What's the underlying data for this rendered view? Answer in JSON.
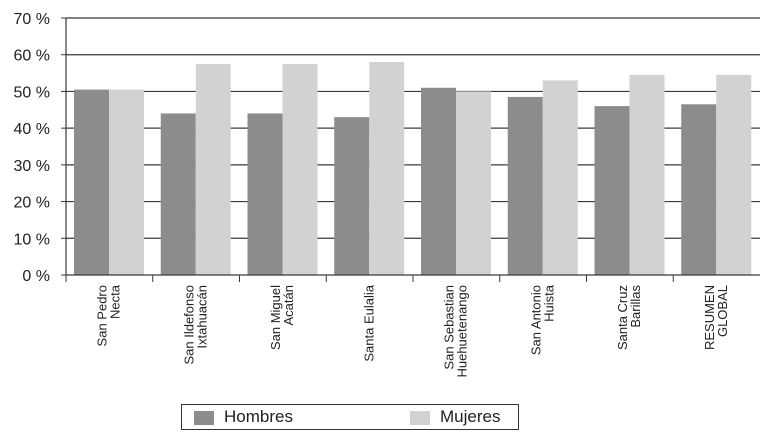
{
  "chart_data": {
    "type": "bar",
    "categories": [
      [
        "San Pedro",
        "Necta"
      ],
      [
        "San Ildefonso",
        "Ixtahuacán"
      ],
      [
        "San Miguel",
        "Acatán"
      ],
      [
        "Santa Eulalia"
      ],
      [
        "San Sebastian",
        "Huehuetenango"
      ],
      [
        "San Antonio",
        "Huista"
      ],
      [
        "Santa Cruz",
        "Barillas"
      ],
      [
        "RESUMEN",
        "GLOBAL"
      ]
    ],
    "series": [
      {
        "name": "Hombres",
        "color": "#8c8c8c",
        "values": [
          50.5,
          44,
          44,
          43,
          51,
          48.5,
          46,
          46.5
        ]
      },
      {
        "name": "Mujeres",
        "color": "#d2d2d2",
        "values": [
          50.5,
          57.5,
          57.5,
          58,
          50,
          53,
          54.5,
          54.5
        ]
      }
    ],
    "ylim": [
      0,
      70
    ],
    "yticks": [
      0,
      10,
      20,
      30,
      40,
      50,
      60,
      70
    ],
    "ytick_suffix": " %",
    "grid": true,
    "legend_position": "bottom",
    "title": "",
    "xlabel": "",
    "ylabel": ""
  }
}
